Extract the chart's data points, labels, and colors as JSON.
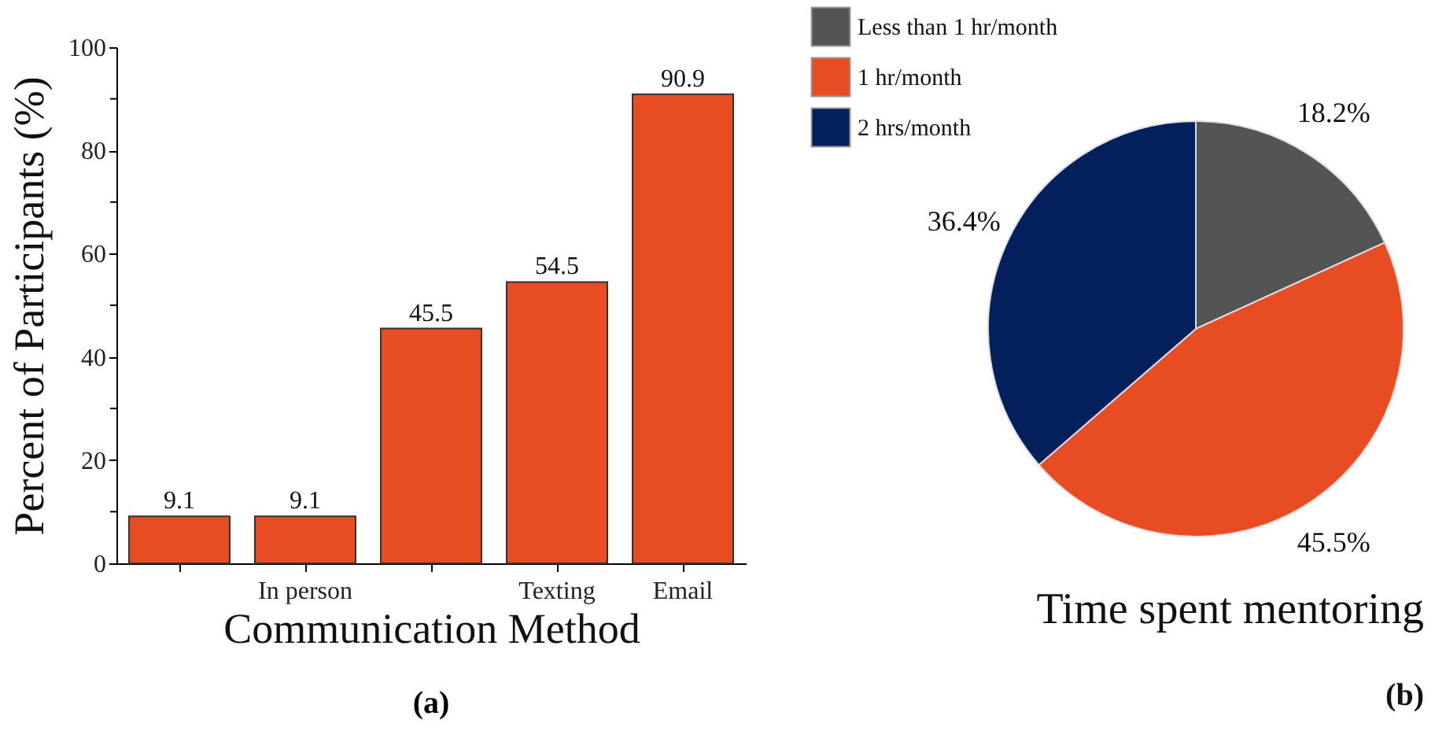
{
  "chart_data": [
    {
      "type": "bar",
      "xlabel": "Communication Method",
      "ylabel": "Percent of Participants (%)",
      "categories": [
        null,
        "In person",
        null,
        "Texting",
        "Email"
      ],
      "values": [
        9.1,
        9.1,
        45.5,
        54.5,
        90.9
      ],
      "color": "#e84c22",
      "ylim": [
        0,
        100
      ],
      "yticks": [
        0,
        {
          "value": 10,
          "label": null
        },
        20,
        {
          "value": 30,
          "label": null
        },
        40,
        {
          "value": 50,
          "label": null
        },
        60,
        {
          "value": 70,
          "label": null
        },
        80,
        {
          "value": 90,
          "label": null
        },
        100
      ],
      "data_labels": true,
      "annotations": [
        "(a)"
      ]
    },
    {
      "type": "pie",
      "title": "Time spent mentoring",
      "categories": [
        "Less than 1 hr/month",
        "1 hr/month",
        "2 hrs/month"
      ],
      "values": [
        18.2,
        45.5,
        36.4
      ],
      "colors": [
        "#545454",
        "#e84c22",
        "#03205c"
      ],
      "value_labels": [
        "18.2%",
        "45.5%",
        "36.4%"
      ],
      "legend": "top left",
      "annotations": [
        "(b)"
      ]
    }
  ]
}
